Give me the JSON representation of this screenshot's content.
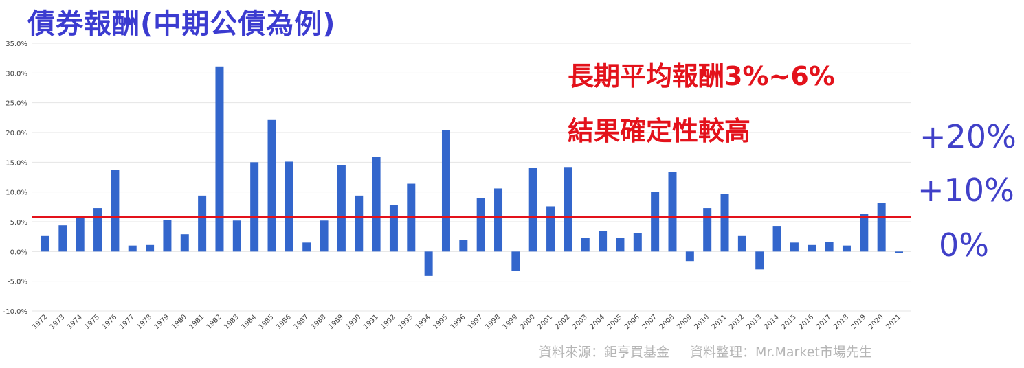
{
  "chart_data": {
    "type": "bar",
    "title": "債券報酬(中期公債為例)",
    "categories": [
      "1972",
      "1973",
      "1974",
      "1975",
      "1976",
      "1977",
      "1978",
      "1979",
      "1980",
      "1981",
      "1982",
      "1983",
      "1984",
      "1985",
      "1986",
      "1987",
      "1988",
      "1989",
      "1990",
      "1991",
      "1992",
      "1993",
      "1994",
      "1995",
      "1996",
      "1997",
      "1998",
      "1999",
      "2000",
      "2001",
      "2002",
      "2003",
      "2004",
      "2005",
      "2006",
      "2007",
      "2008",
      "2009",
      "2010",
      "2011",
      "2012",
      "2013",
      "2014",
      "2015",
      "2016",
      "2017",
      "2018",
      "2019",
      "2020",
      "2021"
    ],
    "values": [
      2.6,
      4.4,
      5.7,
      7.3,
      13.7,
      1.0,
      1.1,
      5.3,
      2.9,
      9.4,
      31.1,
      5.2,
      15.0,
      22.1,
      15.1,
      1.5,
      5.2,
      14.5,
      9.4,
      15.9,
      7.8,
      11.4,
      -4.1,
      20.4,
      1.9,
      9.0,
      10.6,
      -3.3,
      14.1,
      7.6,
      14.2,
      2.3,
      3.4,
      2.3,
      3.1,
      10.0,
      13.4,
      -1.6,
      7.3,
      9.7,
      2.6,
      -3.0,
      4.3,
      1.5,
      1.1,
      1.6,
      1.0,
      6.3,
      8.2,
      -0.3
    ],
    "ylim": [
      -10,
      35
    ],
    "yticks": [
      "35.0%",
      "30.0%",
      "25.0%",
      "20.0%",
      "15.0%",
      "10.0%",
      "5.0%",
      "0.0%",
      "-5.0%",
      "-10.0%"
    ],
    "ytick_values": [
      35,
      30,
      25,
      20,
      15,
      10,
      5,
      0,
      -5,
      -10
    ],
    "reference_line": 5.8,
    "bar_color": "#3366cc",
    "reference_color": "#e3121b",
    "grid": true
  },
  "annotations": {
    "note_line1": "長期平均報酬3%~6%",
    "note_line2": "結果確定性較高",
    "side_label_1": "+20%",
    "side_label_2": "+10%",
    "side_label_3": "0%",
    "source_1": "資料來源：鉅亨買基金",
    "source_2": "資料整理：Mr.Market市場先生"
  }
}
